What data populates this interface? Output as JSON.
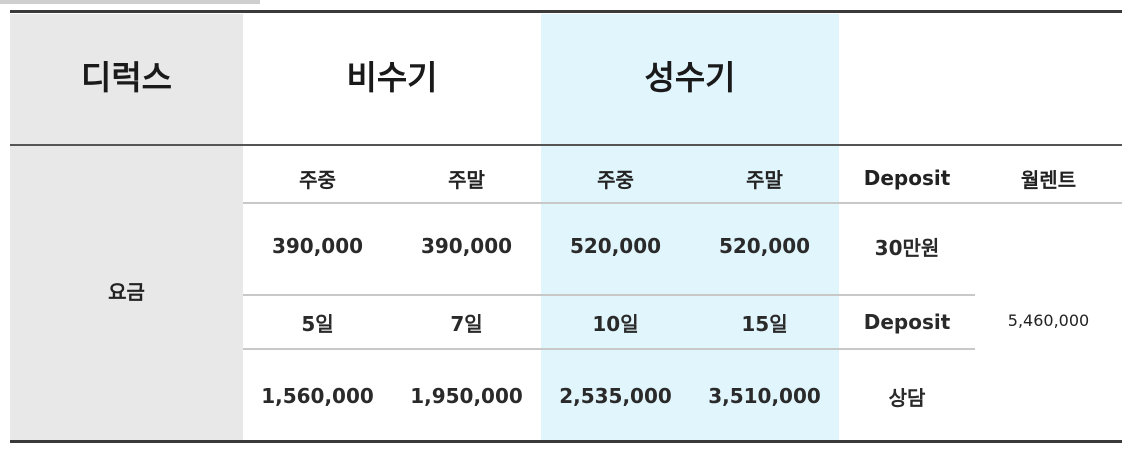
{
  "header": {
    "room_type": "디럭스",
    "off_season": "비수기",
    "peak_season": "성수기"
  },
  "row_label": "요금",
  "subheaders": [
    "주중",
    "주말",
    "주중",
    "주말",
    "Deposit",
    "월렌트"
  ],
  "rows": [
    [
      "390,000",
      "390,000",
      "520,000",
      "520,000",
      "30만원"
    ],
    [
      "5일",
      "7일",
      "10일",
      "15일",
      "Deposit"
    ],
    [
      "1,560,000",
      "1,950,000",
      "2,535,000",
      "3,510,000",
      "상담"
    ]
  ],
  "monthly_rent": "5,460,000",
  "colors": {
    "gray_column": "#e8e8e8",
    "peak_column": "#e1f5fc",
    "rule": "#3a3a3a"
  }
}
